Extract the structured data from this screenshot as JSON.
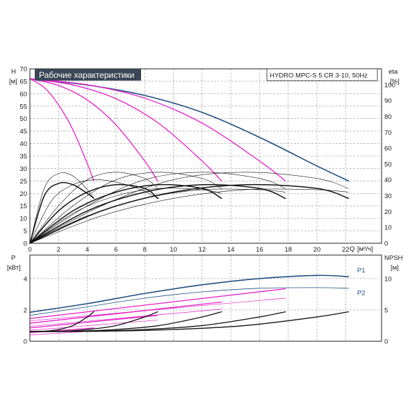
{
  "colors": {
    "blue": "#1f4f82",
    "magenta": "#e61ec8",
    "black": "#111111",
    "title_bg": "#3b4757",
    "grid": "#9a9a9a"
  },
  "chart_data": [
    {
      "type": "line",
      "panel": "head",
      "title": "Рабочие характеристики",
      "subtitle": "HYDRO MPC-S 5 CR 3-10, 50Hz",
      "ylabel": "H",
      "yunit": "[м]",
      "y2label": "eta",
      "y2unit": "[%]",
      "xlabel": "Q",
      "xunit": "[м³/ч]",
      "xlim": [
        0,
        24.5
      ],
      "ylim": [
        0,
        70
      ],
      "y2lim": [
        0,
        110
      ],
      "xticks": [
        0,
        2,
        4,
        6,
        8,
        10,
        12,
        14,
        16,
        18,
        20,
        22
      ],
      "yticks": [
        0,
        5,
        10,
        15,
        20,
        25,
        30,
        35,
        40,
        45,
        50,
        55,
        60,
        65,
        70
      ],
      "y2ticks": [
        0,
        10,
        20,
        30,
        40,
        50,
        60,
        70,
        80,
        90,
        100
      ],
      "grid": true,
      "series": [
        {
          "color": "blue",
          "width": 1.6,
          "x": [
            0,
            4,
            8,
            12,
            16,
            20,
            22.2
          ],
          "y": [
            66,
            63.5,
            59.3,
            52.5,
            42.5,
            31,
            25
          ]
        },
        {
          "color": "magenta",
          "width": 1.3,
          "x": [
            0,
            1,
            2,
            3,
            4,
            4.45
          ],
          "y": [
            66,
            62.5,
            55.5,
            45.5,
            32,
            25
          ]
        },
        {
          "color": "magenta",
          "width": 1.3,
          "x": [
            0,
            2,
            4,
            6,
            8,
            8.9
          ],
          "y": [
            66,
            63.3,
            57.5,
            47.5,
            33,
            25
          ]
        },
        {
          "color": "magenta",
          "width": 1.3,
          "x": [
            0,
            3,
            6,
            9,
            12,
            13.35
          ],
          "y": [
            66,
            63.5,
            58,
            48,
            33,
            25
          ]
        },
        {
          "color": "magenta",
          "width": 1.3,
          "x": [
            0,
            4,
            8,
            12,
            16,
            17.8
          ],
          "y": [
            66,
            63.6,
            58.2,
            48.2,
            33,
            25
          ]
        },
        {
          "color": "black",
          "width": 1.5,
          "x": [
            0,
            1,
            2,
            3,
            4,
            4.45
          ],
          "y": [
            0,
            19,
            24,
            23.5,
            20,
            18
          ]
        },
        {
          "color": "black",
          "width": 1.5,
          "x": [
            0,
            2,
            4,
            6,
            8,
            8.9
          ],
          "y": [
            0,
            13,
            20.5,
            23.5,
            22,
            18
          ]
        },
        {
          "color": "black",
          "width": 1.5,
          "x": [
            0,
            3,
            6,
            9,
            12,
            13.35
          ],
          "y": [
            0,
            13,
            20.5,
            23.5,
            22,
            18
          ]
        },
        {
          "color": "black",
          "width": 1.5,
          "x": [
            0,
            4,
            8,
            12,
            16,
            17.8
          ],
          "y": [
            0,
            13,
            20.5,
            23.5,
            22,
            18
          ]
        },
        {
          "color": "black",
          "width": 1.5,
          "x": [
            0,
            5,
            10,
            15,
            20,
            22.2
          ],
          "y": [
            0,
            13,
            20.5,
            23.5,
            22,
            18
          ]
        },
        {
          "color": "black",
          "width": 0.6,
          "x": [
            0,
            1,
            2,
            3,
            4,
            4.45
          ],
          "y": [
            0,
            22,
            28,
            27,
            21.5,
            18
          ]
        },
        {
          "color": "black",
          "width": 0.6,
          "x": [
            0,
            2,
            4,
            6,
            8,
            8.9
          ],
          "y": [
            0,
            15,
            25.5,
            28.5,
            26,
            22
          ]
        },
        {
          "color": "black",
          "width": 0.6,
          "x": [
            0,
            3,
            6,
            9,
            12,
            13.35
          ],
          "y": [
            0,
            15,
            25.5,
            28.5,
            26,
            22
          ]
        },
        {
          "color": "black",
          "width": 0.6,
          "x": [
            0,
            4,
            8,
            12,
            16,
            17.8
          ],
          "y": [
            0,
            15,
            25.5,
            28.5,
            26,
            22
          ]
        },
        {
          "color": "black",
          "width": 0.6,
          "x": [
            0,
            5,
            10,
            15,
            20,
            22.2
          ],
          "y": [
            0,
            15,
            25.5,
            28.5,
            26,
            22
          ]
        },
        {
          "color": "black",
          "width": 0.6,
          "x": [
            0,
            1.5,
            3,
            4.5,
            6,
            7.5,
            9
          ],
          "y": [
            0,
            17,
            23.5,
            25.5,
            24.5,
            22,
            18
          ]
        },
        {
          "color": "black",
          "width": 0.6,
          "x": [
            0,
            3,
            6,
            9,
            12,
            13.35
          ],
          "y": [
            0,
            12,
            19,
            22,
            21.5,
            20
          ]
        },
        {
          "color": "black",
          "width": 0.6,
          "x": [
            0,
            4,
            8,
            12,
            16,
            17.8
          ],
          "y": [
            0,
            11,
            18,
            21.5,
            21.5,
            20.5
          ]
        },
        {
          "color": "black",
          "width": 0.6,
          "x": [
            0,
            5,
            10,
            15,
            20,
            22.2
          ],
          "y": [
            0,
            11,
            18,
            21.5,
            21.5,
            20.5
          ]
        }
      ]
    },
    {
      "type": "line",
      "panel": "power",
      "ylabel": "P",
      "yunit": "[кВт]",
      "y2label": "NPSH",
      "y2unit": "[м]",
      "xlim": [
        0,
        24.5
      ],
      "ylim": [
        0,
        5.5
      ],
      "y2lim": [
        0,
        13.75
      ],
      "yticks": [
        0,
        2,
        4
      ],
      "y2ticks": [
        0,
        5,
        10
      ],
      "grid": true,
      "labels": [
        {
          "text": "P1",
          "x": 22.8,
          "y": 4.4,
          "color": "blue"
        },
        {
          "text": "P2",
          "x": 22.8,
          "y": 2.95,
          "color": "blue"
        }
      ],
      "series": [
        {
          "name": "P1",
          "color": "blue",
          "width": 1.6,
          "x": [
            0,
            4,
            8,
            12,
            16,
            20,
            22.2
          ],
          "y": [
            1.85,
            2.4,
            3.05,
            3.6,
            4.0,
            4.2,
            4.12
          ]
        },
        {
          "name": "P2",
          "color": "blue",
          "width": 0.8,
          "x": [
            0,
            4,
            8,
            12,
            16,
            20,
            22.2
          ],
          "y": [
            1.65,
            2.2,
            2.75,
            3.15,
            3.38,
            3.42,
            3.38
          ]
        },
        {
          "color": "magenta",
          "width": 1.3,
          "x": [
            0,
            17.8
          ],
          "y": [
            1.45,
            3.35
          ]
        },
        {
          "color": "magenta",
          "width": 0.7,
          "x": [
            0,
            17.8
          ],
          "y": [
            1.3,
            2.75
          ]
        },
        {
          "color": "magenta",
          "width": 1.3,
          "x": [
            0,
            13.35
          ],
          "y": [
            1.15,
            2.5
          ]
        },
        {
          "color": "magenta",
          "width": 0.7,
          "x": [
            0,
            13.35
          ],
          "y": [
            0.95,
            2.05
          ]
        },
        {
          "color": "magenta",
          "width": 1.3,
          "x": [
            0,
            8.9
          ],
          "y": [
            0.85,
            1.65
          ]
        },
        {
          "color": "magenta",
          "width": 0.7,
          "x": [
            0,
            8.9
          ],
          "y": [
            0.7,
            1.35
          ]
        },
        {
          "color": "magenta",
          "width": 1.3,
          "x": [
            0,
            4.45
          ],
          "y": [
            0.55,
            0.85
          ]
        },
        {
          "color": "magenta",
          "width": 0.7,
          "x": [
            0,
            4.45
          ],
          "y": [
            0.4,
            0.65
          ]
        },
        {
          "color": "black",
          "width": 1.3,
          "x": [
            0,
            5,
            10,
            15,
            20,
            22.2
          ],
          "y": [
            0.62,
            0.64,
            0.75,
            1.0,
            1.55,
            1.88
          ]
        },
        {
          "color": "black",
          "width": 1.3,
          "x": [
            0,
            4,
            8,
            12,
            16,
            17.8
          ],
          "y": [
            0.62,
            0.64,
            0.75,
            1.0,
            1.55,
            1.88
          ]
        },
        {
          "color": "black",
          "width": 1.3,
          "x": [
            0,
            3,
            6,
            9,
            12,
            13.35
          ],
          "y": [
            0.62,
            0.64,
            0.75,
            1.0,
            1.55,
            1.88
          ]
        },
        {
          "color": "black",
          "width": 1.3,
          "x": [
            0,
            2,
            4,
            6,
            8,
            8.9
          ],
          "y": [
            0.62,
            0.64,
            0.75,
            1.0,
            1.55,
            1.88
          ]
        },
        {
          "color": "black",
          "width": 1.3,
          "x": [
            0,
            1,
            2,
            3,
            4,
            4.45
          ],
          "y": [
            0.62,
            0.64,
            0.75,
            1.0,
            1.55,
            1.88
          ]
        }
      ]
    }
  ]
}
